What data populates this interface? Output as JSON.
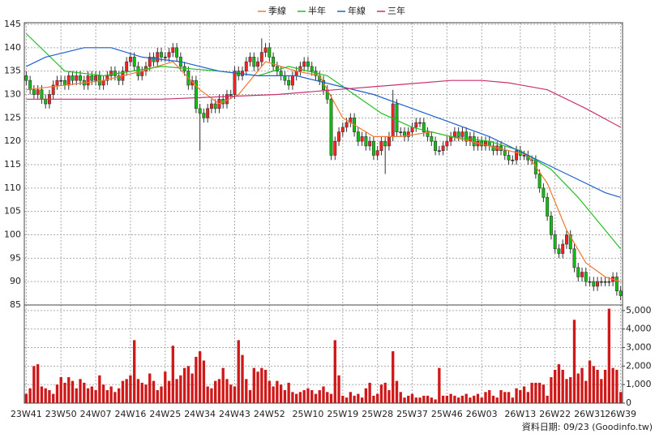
{
  "chart_data": {
    "type": "candlestick",
    "legend": [
      {
        "name": "季線",
        "color": "#f07830"
      },
      {
        "name": "半年",
        "color": "#20c020"
      },
      {
        "name": "年線",
        "color": "#2060d0"
      },
      {
        "name": "三年",
        "color": "#c83070"
      }
    ],
    "footnote": "資料日期: 09/23  (Goodinfo.tw)",
    "categories": [
      "23W41",
      null,
      null,
      null,
      null,
      null,
      null,
      null,
      null,
      "23W50",
      null,
      null,
      null,
      null,
      null,
      null,
      null,
      null,
      "24W07",
      null,
      null,
      null,
      null,
      null,
      null,
      null,
      null,
      "24W16",
      null,
      null,
      null,
      null,
      null,
      null,
      null,
      null,
      "24W25",
      null,
      null,
      null,
      null,
      null,
      null,
      null,
      null,
      "24W34",
      null,
      null,
      null,
      null,
      null,
      null,
      null,
      null,
      "24W43",
      null,
      null,
      null,
      null,
      null,
      null,
      null,
      null,
      "24W52",
      null,
      null,
      null,
      null,
      null,
      null,
      null,
      null,
      null,
      "25W10",
      null,
      null,
      null,
      null,
      null,
      null,
      null,
      null,
      "25W19",
      null,
      null,
      null,
      null,
      null,
      null,
      null,
      null,
      "25W28",
      null,
      null,
      null,
      null,
      null,
      null,
      null,
      null,
      "25W37",
      null,
      null,
      null,
      null,
      null,
      null,
      null,
      null,
      "25W46",
      null,
      null,
      null,
      null,
      null,
      null,
      null,
      null,
      "26W03",
      null,
      null,
      null,
      null,
      null,
      null,
      null,
      null,
      null,
      "26W13",
      null,
      null,
      null,
      null,
      null,
      null,
      null,
      null,
      "26W22",
      null,
      null,
      null,
      null,
      null,
      null,
      null,
      null,
      "26W31",
      null,
      null,
      null,
      null,
      null,
      null,
      null,
      "26W39"
    ],
    "open": [
      134,
      133,
      131,
      130,
      131,
      129,
      128,
      130,
      132,
      133,
      133,
      132,
      134,
      133,
      134,
      133,
      132,
      134,
      133,
      134,
      132,
      133,
      134,
      135,
      134,
      133,
      135,
      137,
      138,
      136,
      134,
      135,
      136,
      138,
      137,
      139,
      138,
      138,
      139,
      140,
      138,
      136,
      135,
      132,
      133,
      127,
      126,
      125,
      127,
      128,
      127,
      129,
      128,
      130,
      130,
      135,
      134,
      135,
      137,
      138,
      136,
      137,
      139,
      140,
      138,
      136,
      135,
      134,
      133,
      132,
      134,
      135,
      136,
      137,
      136,
      135,
      134,
      133,
      131,
      129,
      117,
      120,
      122,
      123,
      124,
      125,
      122,
      120,
      121,
      119,
      120,
      117,
      118,
      120,
      119,
      121,
      128,
      122,
      122,
      121,
      122,
      123,
      124,
      124,
      122,
      121,
      120,
      118,
      118,
      119,
      120,
      121,
      122,
      121,
      122,
      120,
      121,
      119,
      120,
      119,
      120,
      119,
      118,
      119,
      118,
      117,
      116,
      116,
      118,
      117,
      117,
      116,
      116,
      113,
      110,
      108,
      104,
      100,
      97,
      96,
      98,
      100,
      97,
      93,
      91,
      92,
      90,
      90,
      89,
      90,
      90,
      90,
      90,
      91,
      88
    ],
    "high": [
      135,
      134,
      132,
      132,
      132,
      130,
      131,
      133,
      134,
      134,
      134,
      135,
      135,
      135,
      135,
      134,
      135,
      135,
      135,
      135,
      134,
      135,
      136,
      136,
      135,
      136,
      138,
      139,
      139,
      137,
      136,
      137,
      139,
      139,
      140,
      140,
      139,
      140,
      141,
      141,
      139,
      137,
      136,
      134,
      134,
      128,
      127,
      128,
      129,
      129,
      130,
      130,
      131,
      131,
      136,
      136,
      136,
      138,
      139,
      139,
      138,
      142,
      141,
      141,
      139,
      137,
      136,
      135,
      134,
      135,
      136,
      137,
      138,
      138,
      137,
      136,
      135,
      134,
      132,
      130,
      121,
      123,
      124,
      125,
      126,
      126,
      123,
      122,
      122,
      121,
      121,
      119,
      121,
      121,
      122,
      131,
      129,
      123,
      123,
      123,
      124,
      125,
      125,
      125,
      123,
      122,
      121,
      119,
      120,
      121,
      122,
      123,
      123,
      123,
      123,
      122,
      122,
      121,
      121,
      121,
      121,
      120,
      120,
      120,
      119,
      118,
      117,
      119,
      119,
      118,
      118,
      117,
      117,
      114,
      111,
      109,
      105,
      101,
      98,
      99,
      101,
      101,
      98,
      94,
      93,
      93,
      91,
      91,
      91,
      91,
      91,
      91,
      92,
      92,
      89
    ],
    "low": [
      132,
      130,
      129,
      129,
      128,
      127,
      127,
      129,
      131,
      132,
      131,
      131,
      132,
      132,
      132,
      131,
      131,
      132,
      132,
      131,
      131,
      132,
      133,
      133,
      132,
      132,
      134,
      136,
      135,
      133,
      133,
      134,
      135,
      136,
      136,
      137,
      137,
      137,
      138,
      137,
      135,
      134,
      131,
      131,
      126,
      118,
      124,
      124,
      126,
      126,
      126,
      127,
      127,
      129,
      129,
      133,
      133,
      134,
      136,
      135,
      135,
      136,
      138,
      137,
      135,
      134,
      133,
      132,
      131,
      131,
      133,
      134,
      135,
      135,
      134,
      133,
      132,
      130,
      128,
      116,
      116,
      119,
      121,
      122,
      123,
      121,
      119,
      119,
      118,
      118,
      116,
      116,
      117,
      113,
      118,
      120,
      121,
      121,
      120,
      120,
      121,
      122,
      123,
      121,
      120,
      119,
      117,
      117,
      117,
      118,
      119,
      120,
      120,
      120,
      119,
      119,
      118,
      118,
      118,
      118,
      118,
      117,
      117,
      117,
      116,
      115,
      115,
      115,
      116,
      116,
      115,
      115,
      112,
      109,
      107,
      103,
      99,
      96,
      95,
      95,
      97,
      96,
      92,
      90,
      90,
      89,
      89,
      88,
      88,
      89,
      89,
      89,
      89,
      87,
      86
    ],
    "close": [
      133,
      131,
      130,
      131,
      129,
      128,
      130,
      132,
      133,
      133,
      132,
      134,
      133,
      134,
      133,
      132,
      134,
      133,
      134,
      132,
      133,
      134,
      135,
      134,
      133,
      135,
      137,
      138,
      136,
      134,
      135,
      136,
      138,
      137,
      139,
      138,
      138,
      139,
      140,
      138,
      136,
      135,
      132,
      133,
      127,
      126,
      125,
      127,
      128,
      127,
      129,
      128,
      130,
      130,
      135,
      134,
      135,
      137,
      138,
      136,
      137,
      139,
      140,
      138,
      136,
      135,
      134,
      133,
      132,
      134,
      135,
      136,
      137,
      136,
      135,
      134,
      133,
      131,
      129,
      117,
      120,
      122,
      123,
      124,
      125,
      122,
      120,
      121,
      119,
      120,
      117,
      118,
      120,
      119,
      121,
      128,
      122,
      122,
      121,
      122,
      123,
      124,
      124,
      122,
      121,
      120,
      118,
      118,
      119,
      120,
      121,
      122,
      121,
      122,
      120,
      121,
      119,
      120,
      119,
      120,
      119,
      118,
      119,
      118,
      117,
      116,
      116,
      118,
      117,
      117,
      116,
      116,
      113,
      110,
      108,
      104,
      100,
      97,
      96,
      98,
      100,
      97,
      93,
      91,
      92,
      90,
      90,
      89,
      90,
      90,
      90,
      90,
      91,
      88,
      87
    ],
    "up_color": "#ff2020",
    "down_color": "#10c010",
    "ylim": [
      85,
      145
    ],
    "yticks": [
      85,
      90,
      95,
      100,
      105,
      110,
      115,
      120,
      125,
      130,
      135,
      140,
      145
    ],
    "grid": true,
    "lines": [
      {
        "name": "季線",
        "color": "#f07830",
        "x": [
          0,
          10,
          20,
          30,
          38,
          45,
          50,
          55,
          62,
          70,
          76,
          82,
          90,
          97,
          105,
          115,
          125,
          130,
          135,
          140,
          145,
          150,
          154
        ],
        "values": [
          131,
          132,
          133,
          135,
          137,
          131,
          128,
          130,
          137,
          135,
          134,
          125,
          121,
          121,
          122,
          120,
          118,
          117,
          111,
          101,
          94,
          91,
          90
        ]
      },
      {
        "name": "半年",
        "color": "#20c020",
        "x": [
          0,
          10,
          20,
          35,
          50,
          60,
          68,
          78,
          85,
          92,
          100,
          110,
          120,
          128,
          136,
          143,
          150,
          154
        ],
        "values": [
          143,
          135,
          134,
          136,
          135,
          134,
          136,
          134,
          130,
          126,
          123,
          121,
          120,
          118,
          114,
          108,
          101,
          97
        ]
      },
      {
        "name": "年線",
        "color": "#2060d0",
        "x": [
          0,
          5,
          15,
          22,
          30,
          40,
          50,
          60,
          70,
          80,
          90,
          100,
          110,
          120,
          130,
          140,
          150,
          154
        ],
        "values": [
          136,
          138,
          140,
          140,
          138,
          137,
          135,
          134,
          134,
          132,
          130,
          127,
          124,
          121,
          117,
          113,
          109,
          108
        ]
      },
      {
        "name": "三年",
        "color": "#c83070",
        "x": [
          0,
          20,
          35,
          50,
          65,
          80,
          95,
          110,
          118,
          125,
          135,
          145,
          154
        ],
        "values": [
          129,
          129,
          129,
          129.5,
          130,
          131,
          132,
          133,
          133,
          132.5,
          131,
          127,
          123
        ]
      }
    ],
    "volume": {
      "color": "#d01818",
      "ylim": [
        0,
        5300
      ],
      "yticks": [
        0,
        {
          "value": 1000,
          "label": "1,000"
        },
        {
          "value": 2000,
          "label": "2,000"
        },
        {
          "value": 3000,
          "label": "3,000"
        },
        {
          "value": 4000,
          "label": "4,000"
        },
        {
          "value": 5000,
          "label": "5,000"
        }
      ],
      "values": [
        500,
        800,
        2000,
        2100,
        900,
        800,
        700,
        500,
        1000,
        1400,
        1100,
        1400,
        1200,
        800,
        1300,
        1100,
        800,
        900,
        700,
        1500,
        1000,
        700,
        900,
        600,
        800,
        1200,
        1300,
        1500,
        3400,
        1300,
        1100,
        1000,
        1600,
        1200,
        700,
        900,
        1700,
        1200,
        3100,
        1300,
        1500,
        1900,
        2000,
        1600,
        2500,
        2800,
        2300,
        900,
        800,
        1200,
        1300,
        1900,
        1300,
        1000,
        900,
        3400,
        2600,
        1300,
        700,
        1900,
        1700,
        1900,
        1800,
        1200,
        900,
        1200,
        1000,
        700,
        1100,
        600,
        500,
        600,
        700,
        800,
        700,
        500,
        700,
        900,
        600,
        500,
        3400,
        1500,
        400,
        300,
        600,
        400,
        500,
        300,
        800,
        1100,
        400,
        500,
        1000,
        1100,
        700,
        2800,
        1200,
        600,
        300,
        400,
        500,
        300,
        300,
        400,
        400,
        300,
        200,
        1900,
        400,
        400,
        500,
        400,
        300,
        400,
        500,
        300,
        400,
        500,
        300,
        600,
        700,
        400,
        300,
        700,
        600,
        600,
        300,
        800,
        700,
        900,
        600,
        1100,
        1100,
        1100,
        1000,
        400,
        1400,
        1800,
        2100,
        1800,
        1300,
        1400,
        4500,
        1600,
        1900,
        1200,
        2300,
        2000,
        1800,
        1300,
        1800,
        5100,
        1900,
        1800,
        600
      ]
    }
  }
}
